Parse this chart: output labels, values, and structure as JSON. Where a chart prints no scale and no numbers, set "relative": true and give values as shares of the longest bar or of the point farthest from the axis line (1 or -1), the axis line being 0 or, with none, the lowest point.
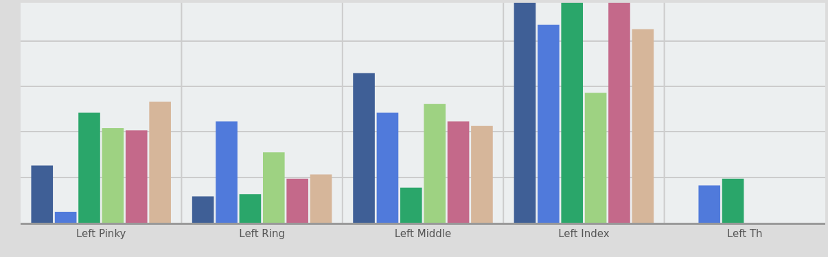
{
  "chart_data": {
    "type": "bar",
    "relative": true,
    "grid": true,
    "categories": [
      "Left Pinky",
      "Left Ring",
      "Left Middle",
      "Left Index",
      "Left Th"
    ],
    "series": [
      {
        "color": "#3f5f96",
        "values": [
          0.26,
          0.12,
          0.68,
          1,
          null
        ]
      },
      {
        "color": "#507adb",
        "values": [
          0.05,
          0.46,
          0.5,
          0.9,
          0.17
        ]
      },
      {
        "color": "#2aa66a",
        "values": [
          0.5,
          0.13,
          0.16,
          1,
          0.2
        ]
      },
      {
        "color": "#9ed282",
        "values": [
          0.43,
          0.32,
          0.54,
          0.59,
          null
        ]
      },
      {
        "color": "#c4698a",
        "values": [
          0.42,
          0.2,
          0.46,
          1,
          null
        ]
      },
      {
        "color": "#d6b69a",
        "values": [
          0.55,
          0.22,
          0.44,
          0.88,
          null
        ]
      }
    ]
  }
}
